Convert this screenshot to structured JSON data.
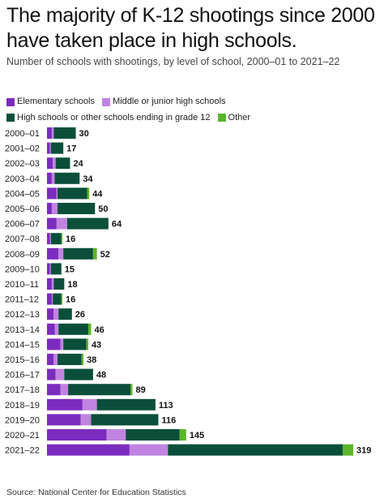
{
  "title": "The majority of K-12 shootings since 2000 have taken place in high schools.",
  "subtitle": "Number of schools with shootings, by level of school, 2000–01 to 2021–22",
  "source": "Source: National Center for Education Statistics",
  "legend": [
    {
      "label": "Elementary schools",
      "color": "#7b2cbf"
    },
    {
      "label": "Middle or junior high schools",
      "color": "#c084e0"
    },
    {
      "label": "High schools or other schools ending in grade 12",
      "color": "#0b4f3a"
    },
    {
      "label": "Other",
      "color": "#5bb52a"
    }
  ],
  "chart_data": {
    "type": "bar",
    "orientation": "horizontal",
    "stacked": true,
    "xlim": [
      0,
      319
    ],
    "categories": [
      "2000–01",
      "2001–02",
      "2002–03",
      "2003–04",
      "2004–05",
      "2005–06",
      "2006–07",
      "2007–08",
      "2008–09",
      "2009–10",
      "2010–11",
      "2011–12",
      "2012–13",
      "2013–14",
      "2014–15",
      "2015–16",
      "2016–17",
      "2017–18",
      "2018–19",
      "2019–20",
      "2020–21",
      "2021–22"
    ],
    "series": [
      {
        "name": "Elementary schools",
        "color": "#7b2cbf",
        "values": [
          5,
          3,
          6,
          5,
          10,
          5,
          10,
          3,
          12,
          3,
          5,
          5,
          7,
          8,
          14,
          7,
          9,
          14,
          37,
          35,
          62,
          86
        ]
      },
      {
        "name": "Middle or junior high schools",
        "color": "#c084e0",
        "values": [
          2,
          1,
          3,
          3,
          1,
          6,
          11,
          1,
          5,
          1,
          2,
          1,
          5,
          4,
          3,
          4,
          9,
          8,
          15,
          11,
          20,
          40
        ]
      },
      {
        "name": "High schools or other schools ending in grade 12",
        "color": "#0b4f3a",
        "values": [
          23,
          13,
          15,
          26,
          31,
          39,
          43,
          11,
          31,
          11,
          11,
          9,
          14,
          31,
          24,
          25,
          30,
          65,
          61,
          70,
          56,
          182
        ]
      },
      {
        "name": "Other",
        "color": "#5bb52a",
        "values": [
          0,
          0,
          0,
          0,
          2,
          0,
          0,
          1,
          4,
          0,
          0,
          1,
          0,
          3,
          2,
          2,
          0,
          2,
          0,
          0,
          7,
          11
        ]
      }
    ],
    "totals": [
      30,
      17,
      24,
      34,
      44,
      50,
      64,
      16,
      52,
      15,
      18,
      16,
      26,
      46,
      43,
      38,
      48,
      89,
      113,
      116,
      145,
      319
    ]
  }
}
